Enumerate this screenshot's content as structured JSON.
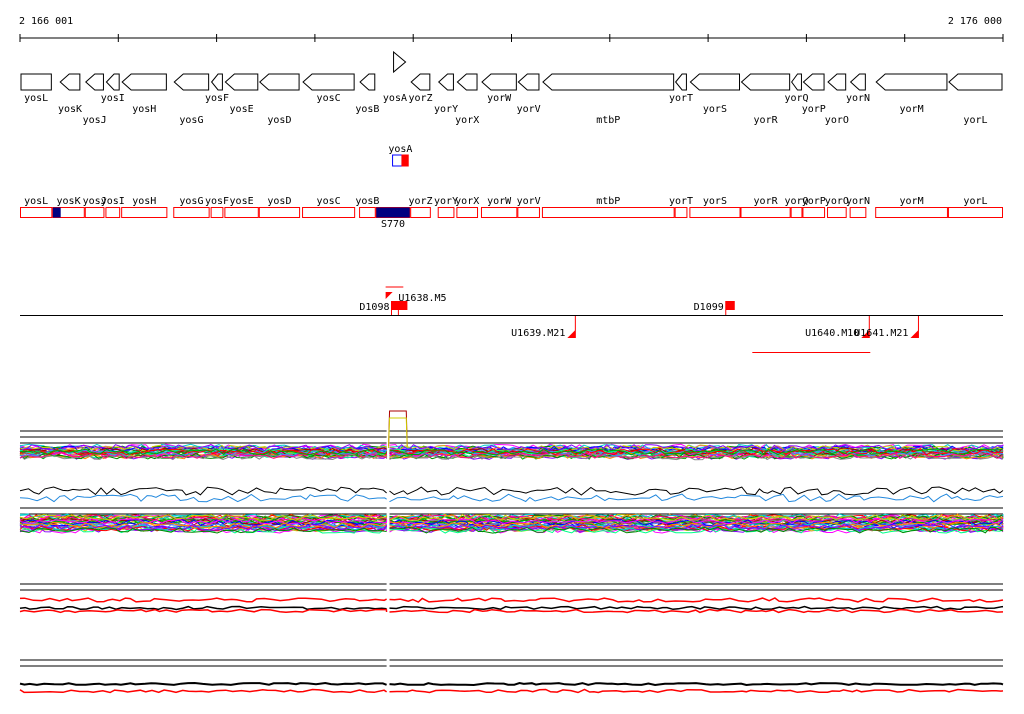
{
  "ruler": {
    "start_label": "2 166 001",
    "end_label": "2 176 000",
    "start": 2166001,
    "end": 2176000
  },
  "genes": [
    {
      "name": "yosL",
      "start": 2166001,
      "end": 2166330,
      "strand": "+",
      "label_row": 0
    },
    {
      "name": "yosK",
      "start": 2166400,
      "end": 2166620,
      "strand": "-",
      "label_row": 1
    },
    {
      "name": "yosJ",
      "start": 2166660,
      "end": 2166860,
      "strand": "-",
      "label_row": 2
    },
    {
      "name": "yosI",
      "start": 2166870,
      "end": 2167020,
      "strand": "-",
      "label_row": 0
    },
    {
      "name": "yosH",
      "start": 2167030,
      "end": 2167500,
      "strand": "-",
      "label_row": 1
    },
    {
      "name": "yosG",
      "start": 2167560,
      "end": 2167930,
      "strand": "-",
      "label_row": 2
    },
    {
      "name": "yosF",
      "start": 2167940,
      "end": 2168070,
      "strand": "-",
      "label_row": 0
    },
    {
      "name": "yosE",
      "start": 2168080,
      "end": 2168430,
      "strand": "-",
      "label_row": 1
    },
    {
      "name": "yosD",
      "start": 2168430,
      "end": 2168850,
      "strand": "-",
      "label_row": 2
    },
    {
      "name": "yosC",
      "start": 2168870,
      "end": 2169410,
      "strand": "-",
      "label_row": 0
    },
    {
      "name": "yosB",
      "start": 2169450,
      "end": 2169620,
      "strand": "-",
      "label_row": 1
    },
    {
      "name": "yosA",
      "start": 2169750,
      "end": 2169880,
      "strand": "+",
      "label_row": 0,
      "marker": "triangle"
    },
    {
      "name": "yorZ",
      "start": 2169970,
      "end": 2170180,
      "strand": "-",
      "label_row": 0
    },
    {
      "name": "yorY",
      "start": 2170250,
      "end": 2170420,
      "strand": "-",
      "label_row": 1
    },
    {
      "name": "yorX",
      "start": 2170440,
      "end": 2170660,
      "strand": "-",
      "label_row": 2
    },
    {
      "name": "yorW",
      "start": 2170690,
      "end": 2171060,
      "strand": "-",
      "label_row": 0
    },
    {
      "name": "yorV",
      "start": 2171060,
      "end": 2171290,
      "strand": "-",
      "label_row": 1
    },
    {
      "name": "mtbP",
      "start": 2171310,
      "end": 2172660,
      "strand": "-",
      "label_row": 2
    },
    {
      "name": "yorT",
      "start": 2172660,
      "end": 2172790,
      "strand": "-",
      "label_row": 0
    },
    {
      "name": "yorS",
      "start": 2172810,
      "end": 2173330,
      "strand": "-",
      "label_row": 1
    },
    {
      "name": "yorR",
      "start": 2173330,
      "end": 2173840,
      "strand": "-",
      "label_row": 2
    },
    {
      "name": "yorQ",
      "start": 2173840,
      "end": 2173960,
      "strand": "-",
      "label_row": 0
    },
    {
      "name": "yorP",
      "start": 2173960,
      "end": 2174190,
      "strand": "-",
      "label_row": 1
    },
    {
      "name": "yorO",
      "start": 2174210,
      "end": 2174410,
      "strand": "-",
      "label_row": 2
    },
    {
      "name": "yorN",
      "start": 2174440,
      "end": 2174610,
      "strand": "-",
      "label_row": 0
    },
    {
      "name": "yorM",
      "start": 2174700,
      "end": 2175440,
      "strand": "-",
      "label_row": 1
    },
    {
      "name": "yorL",
      "start": 2175440,
      "end": 2176000,
      "strand": "-",
      "label_row": 2
    }
  ],
  "yosA_highlight": {
    "label": "yosA",
    "start": 2169750,
    "end": 2169950
  },
  "features": [
    {
      "name": "yosL",
      "start": 2166001,
      "end": 2166330
    },
    {
      "name": "yosK",
      "start": 2166330,
      "end": 2166660,
      "fill": {
        "start": 2166330,
        "end": 2166420,
        "color": "#000080"
      }
    },
    {
      "name": "yosJ",
      "start": 2166660,
      "end": 2166860
    },
    {
      "name": "yosI",
      "start": 2166870,
      "end": 2167020
    },
    {
      "name": "yosH",
      "start": 2167030,
      "end": 2167500
    },
    {
      "name": "yosG",
      "start": 2167560,
      "end": 2167930
    },
    {
      "name": "yosF",
      "start": 2167940,
      "end": 2168070
    },
    {
      "name": "yosE",
      "start": 2168080,
      "end": 2168430
    },
    {
      "name": "yosD",
      "start": 2168430,
      "end": 2168850
    },
    {
      "name": "yosC",
      "start": 2168870,
      "end": 2169410
    },
    {
      "name": "yosB",
      "start": 2169450,
      "end": 2169620
    },
    {
      "name": "S770",
      "start": 2169620,
      "end": 2169970,
      "fill": {
        "start": 2169620,
        "end": 2169970,
        "color": "#000080"
      },
      "label_below": true
    },
    {
      "name": "yorZ",
      "start": 2169970,
      "end": 2170180
    },
    {
      "name": "yorY",
      "start": 2170250,
      "end": 2170420
    },
    {
      "name": "yorX",
      "start": 2170440,
      "end": 2170660
    },
    {
      "name": "yorW",
      "start": 2170690,
      "end": 2171060
    },
    {
      "name": "yorV",
      "start": 2171060,
      "end": 2171290
    },
    {
      "name": "mtbP",
      "start": 2171310,
      "end": 2172660
    },
    {
      "name": "yorT",
      "start": 2172660,
      "end": 2172790
    },
    {
      "name": "yorS",
      "start": 2172810,
      "end": 2173330
    },
    {
      "name": "yorR",
      "start": 2173330,
      "end": 2173840
    },
    {
      "name": "yorQ",
      "start": 2173840,
      "end": 2173960
    },
    {
      "name": "yorP",
      "start": 2173960,
      "end": 2174190
    },
    {
      "name": "yorO",
      "start": 2174210,
      "end": 2174410
    },
    {
      "name": "yorN",
      "start": 2174440,
      "end": 2174610
    },
    {
      "name": "yorM",
      "start": 2174700,
      "end": 2175440
    },
    {
      "name": "yorL",
      "start": 2175440,
      "end": 2176000
    }
  ],
  "markers_above": [
    {
      "name": "D1098",
      "pos": 2169780,
      "label": "D1098",
      "label_side": "left"
    },
    {
      "name": "U1638.M5",
      "pos": 2169850,
      "label": "U1638.M5",
      "label_side": "right"
    },
    {
      "name": "D1099",
      "pos": 2173180,
      "label": "D1099",
      "label_side": "left"
    }
  ],
  "markers_below": [
    {
      "name": "U1639.M21",
      "pos": 2171650,
      "label": "U1639.M21"
    },
    {
      "name": "U1640.M10",
      "pos": 2174640,
      "label": "U1640.M10"
    },
    {
      "name": "U1641.M21",
      "pos": 2175140,
      "label": "U1641.M21"
    }
  ],
  "red_bar": {
    "start": 2173450,
    "end": 2174650
  },
  "colors": {
    "gene_outline": "#000000",
    "feature_outline": "#ff0000",
    "feature_fill": "#000080",
    "marker": "#ff0000",
    "baseline": "#000000"
  }
}
